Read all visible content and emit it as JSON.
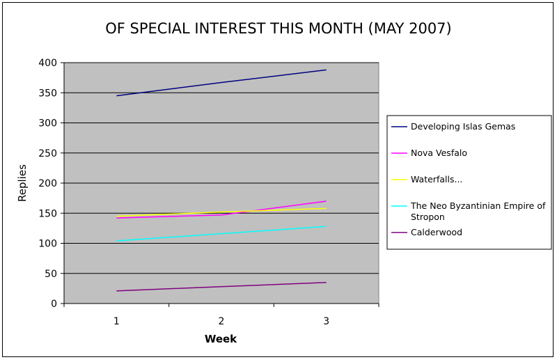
{
  "chart_data": {
    "type": "line",
    "title": "OF SPECIAL INTEREST THIS MONTH (MAY 2007)",
    "xlabel": "Week",
    "ylabel": "Replies",
    "categories": [
      "1",
      "2",
      "3"
    ],
    "ylim": [
      0,
      400
    ],
    "yticks": [
      0,
      50,
      100,
      150,
      200,
      250,
      300,
      350,
      400
    ],
    "grid": "horizontal",
    "plot_background": "#c0c0c0",
    "legend_position": "right",
    "series": [
      {
        "name": "Developing Islas Gemas",
        "color": "#000080",
        "values": [
          345,
          367,
          388
        ]
      },
      {
        "name": "Nova Vesfalo",
        "color": "#ff00ff",
        "values": [
          142,
          147,
          170
        ]
      },
      {
        "name": "Waterfalls...",
        "color": "#ffff00",
        "values": [
          145,
          152,
          158
        ]
      },
      {
        "name": "The Neo Byzantinian Empire of Stropon",
        "legend_lines": [
          "The Neo Byzantinian Empire of",
          "Stropon"
        ],
        "color": "#00ffff",
        "values": [
          104,
          116,
          128
        ]
      },
      {
        "name": "Calderwood",
        "color": "#800080",
        "values": [
          21,
          28,
          35
        ]
      }
    ]
  }
}
